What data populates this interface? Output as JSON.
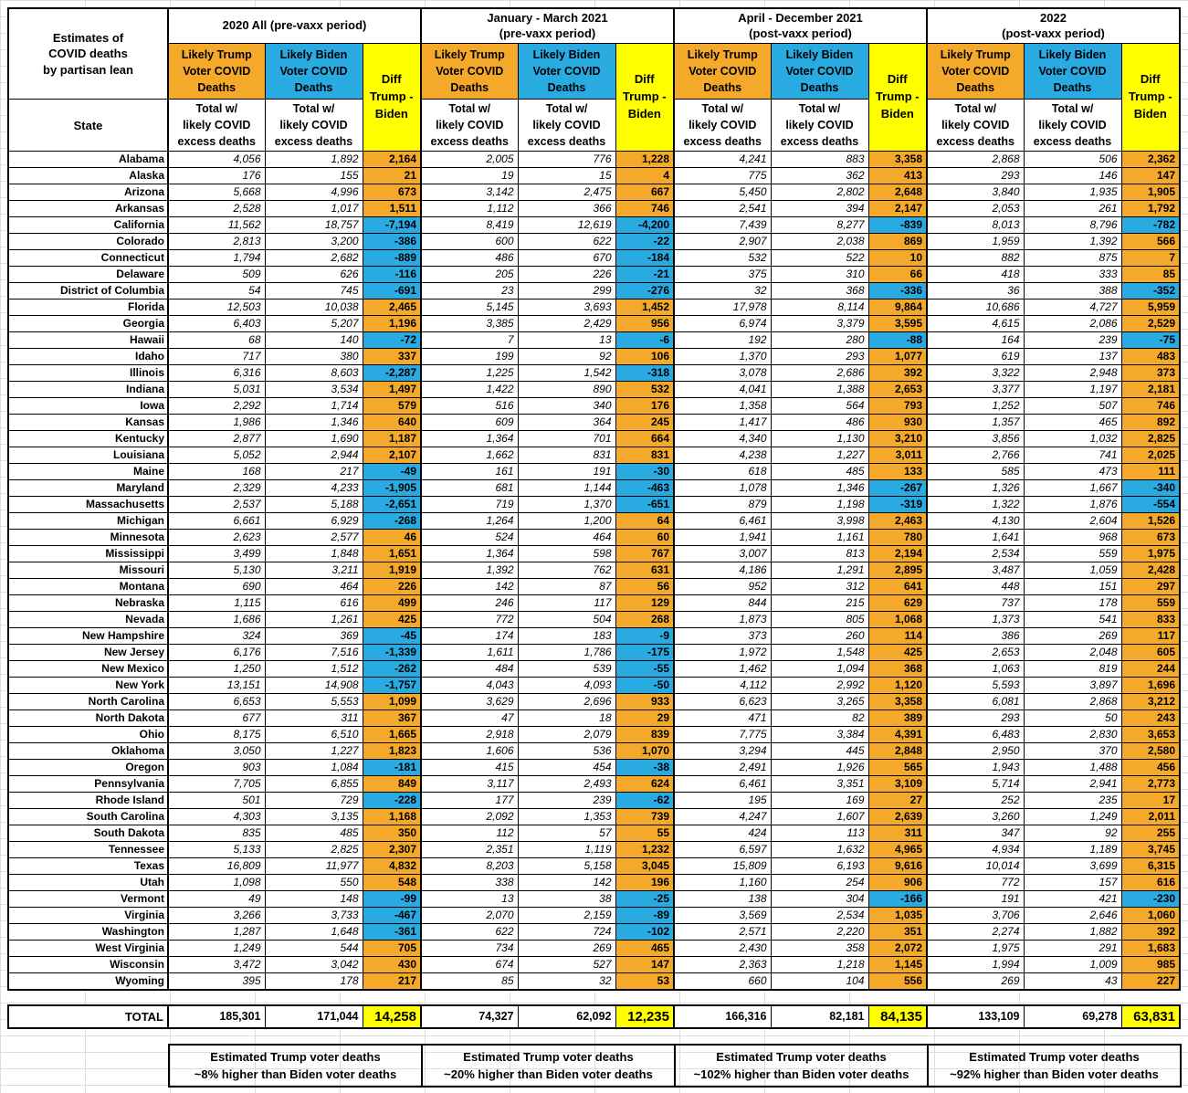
{
  "colors": {
    "trump": "#F5A92B",
    "biden": "#29ABE2",
    "diff_positive": "#F5A92B",
    "diff_negative": "#29ABE2",
    "diff_header": "#FFFF00",
    "total_diff": "#FFFF00"
  },
  "chart_data": {
    "type": "table",
    "title": "Estimates of\nCOVID deaths\nby partisan lean",
    "period_groups": [
      "2020 All (pre-vaxx period)",
      "January - March 2021\n(pre-vaxx period)",
      "April - December 2021\n(post-vaxx period)",
      "2022\n(post-vaxx period)"
    ],
    "column_headers": {
      "state": "State",
      "trump": "Likely Trump\nVoter COVID\nDeaths",
      "biden": "Likely Biden\nVoter COVID\nDeaths",
      "diff": "Diff\nTrump -\nBiden",
      "sub": "Total w/\nlikely COVID\nexcess deaths"
    },
    "rows": [
      [
        "Alabama",
        "4,056",
        "1,892",
        "2,164",
        "2,005",
        "776",
        "1,228",
        "4,241",
        "883",
        "3,358",
        "2,868",
        "506",
        "2,362"
      ],
      [
        "Alaska",
        "176",
        "155",
        "21",
        "19",
        "15",
        "4",
        "775",
        "362",
        "413",
        "293",
        "146",
        "147"
      ],
      [
        "Arizona",
        "5,668",
        "4,996",
        "673",
        "3,142",
        "2,475",
        "667",
        "5,450",
        "2,802",
        "2,648",
        "3,840",
        "1,935",
        "1,905"
      ],
      [
        "Arkansas",
        "2,528",
        "1,017",
        "1,511",
        "1,112",
        "366",
        "746",
        "2,541",
        "394",
        "2,147",
        "2,053",
        "261",
        "1,792"
      ],
      [
        "California",
        "11,562",
        "18,757",
        "-7,194",
        "8,419",
        "12,619",
        "-4,200",
        "7,439",
        "8,277",
        "-839",
        "8,013",
        "8,796",
        "-782"
      ],
      [
        "Colorado",
        "2,813",
        "3,200",
        "-386",
        "600",
        "622",
        "-22",
        "2,907",
        "2,038",
        "869",
        "1,959",
        "1,392",
        "566"
      ],
      [
        "Connecticut",
        "1,794",
        "2,682",
        "-889",
        "486",
        "670",
        "-184",
        "532",
        "522",
        "10",
        "882",
        "875",
        "7"
      ],
      [
        "Delaware",
        "509",
        "626",
        "-116",
        "205",
        "226",
        "-21",
        "375",
        "310",
        "66",
        "418",
        "333",
        "85"
      ],
      [
        "District of Columbia",
        "54",
        "745",
        "-691",
        "23",
        "299",
        "-276",
        "32",
        "368",
        "-336",
        "36",
        "388",
        "-352"
      ],
      [
        "Florida",
        "12,503",
        "10,038",
        "2,465",
        "5,145",
        "3,693",
        "1,452",
        "17,978",
        "8,114",
        "9,864",
        "10,686",
        "4,727",
        "5,959"
      ],
      [
        "Georgia",
        "6,403",
        "5,207",
        "1,196",
        "3,385",
        "2,429",
        "956",
        "6,974",
        "3,379",
        "3,595",
        "4,615",
        "2,086",
        "2,529"
      ],
      [
        "Hawaii",
        "68",
        "140",
        "-72",
        "7",
        "13",
        "-6",
        "192",
        "280",
        "-88",
        "164",
        "239",
        "-75"
      ],
      [
        "Idaho",
        "717",
        "380",
        "337",
        "199",
        "92",
        "106",
        "1,370",
        "293",
        "1,077",
        "619",
        "137",
        "483"
      ],
      [
        "Illinois",
        "6,316",
        "8,603",
        "-2,287",
        "1,225",
        "1,542",
        "-318",
        "3,078",
        "2,686",
        "392",
        "3,322",
        "2,948",
        "373"
      ],
      [
        "Indiana",
        "5,031",
        "3,534",
        "1,497",
        "1,422",
        "890",
        "532",
        "4,041",
        "1,388",
        "2,653",
        "3,377",
        "1,197",
        "2,181"
      ],
      [
        "Iowa",
        "2,292",
        "1,714",
        "579",
        "516",
        "340",
        "176",
        "1,358",
        "564",
        "793",
        "1,252",
        "507",
        "746"
      ],
      [
        "Kansas",
        "1,986",
        "1,346",
        "640",
        "609",
        "364",
        "245",
        "1,417",
        "486",
        "930",
        "1,357",
        "465",
        "892"
      ],
      [
        "Kentucky",
        "2,877",
        "1,690",
        "1,187",
        "1,364",
        "701",
        "664",
        "4,340",
        "1,130",
        "3,210",
        "3,856",
        "1,032",
        "2,825"
      ],
      [
        "Louisiana",
        "5,052",
        "2,944",
        "2,107",
        "1,662",
        "831",
        "831",
        "4,238",
        "1,227",
        "3,011",
        "2,766",
        "741",
        "2,025"
      ],
      [
        "Maine",
        "168",
        "217",
        "-49",
        "161",
        "191",
        "-30",
        "618",
        "485",
        "133",
        "585",
        "473",
        "111"
      ],
      [
        "Maryland",
        "2,329",
        "4,233",
        "-1,905",
        "681",
        "1,144",
        "-463",
        "1,078",
        "1,346",
        "-267",
        "1,326",
        "1,667",
        "-340"
      ],
      [
        "Massachusetts",
        "2,537",
        "5,188",
        "-2,651",
        "719",
        "1,370",
        "-651",
        "879",
        "1,198",
        "-319",
        "1,322",
        "1,876",
        "-554"
      ],
      [
        "Michigan",
        "6,661",
        "6,929",
        "-268",
        "1,264",
        "1,200",
        "64",
        "6,461",
        "3,998",
        "2,463",
        "4,130",
        "2,604",
        "1,526"
      ],
      [
        "Minnesota",
        "2,623",
        "2,577",
        "46",
        "524",
        "464",
        "60",
        "1,941",
        "1,161",
        "780",
        "1,641",
        "968",
        "673"
      ],
      [
        "Mississippi",
        "3,499",
        "1,848",
        "1,651",
        "1,364",
        "598",
        "767",
        "3,007",
        "813",
        "2,194",
        "2,534",
        "559",
        "1,975"
      ],
      [
        "Missouri",
        "5,130",
        "3,211",
        "1,919",
        "1,392",
        "762",
        "631",
        "4,186",
        "1,291",
        "2,895",
        "3,487",
        "1,059",
        "2,428"
      ],
      [
        "Montana",
        "690",
        "464",
        "226",
        "142",
        "87",
        "56",
        "952",
        "312",
        "641",
        "448",
        "151",
        "297"
      ],
      [
        "Nebraska",
        "1,115",
        "616",
        "499",
        "246",
        "117",
        "129",
        "844",
        "215",
        "629",
        "737",
        "178",
        "559"
      ],
      [
        "Nevada",
        "1,686",
        "1,261",
        "425",
        "772",
        "504",
        "268",
        "1,873",
        "805",
        "1,068",
        "1,373",
        "541",
        "833"
      ],
      [
        "New Hampshire",
        "324",
        "369",
        "-45",
        "174",
        "183",
        "-9",
        "373",
        "260",
        "114",
        "386",
        "269",
        "117"
      ],
      [
        "New Jersey",
        "6,176",
        "7,516",
        "-1,339",
        "1,611",
        "1,786",
        "-175",
        "1,972",
        "1,548",
        "425",
        "2,653",
        "2,048",
        "605"
      ],
      [
        "New Mexico",
        "1,250",
        "1,512",
        "-262",
        "484",
        "539",
        "-55",
        "1,462",
        "1,094",
        "368",
        "1,063",
        "819",
        "244"
      ],
      [
        "New York",
        "13,151",
        "14,908",
        "-1,757",
        "4,043",
        "4,093",
        "-50",
        "4,112",
        "2,992",
        "1,120",
        "5,593",
        "3,897",
        "1,696"
      ],
      [
        "North Carolina",
        "6,653",
        "5,553",
        "1,099",
        "3,629",
        "2,696",
        "933",
        "6,623",
        "3,265",
        "3,358",
        "6,081",
        "2,868",
        "3,212"
      ],
      [
        "North Dakota",
        "677",
        "311",
        "367",
        "47",
        "18",
        "29",
        "471",
        "82",
        "389",
        "293",
        "50",
        "243"
      ],
      [
        "Ohio",
        "8,175",
        "6,510",
        "1,665",
        "2,918",
        "2,079",
        "839",
        "7,775",
        "3,384",
        "4,391",
        "6,483",
        "2,830",
        "3,653"
      ],
      [
        "Oklahoma",
        "3,050",
        "1,227",
        "1,823",
        "1,606",
        "536",
        "1,070",
        "3,294",
        "445",
        "2,848",
        "2,950",
        "370",
        "2,580"
      ],
      [
        "Oregon",
        "903",
        "1,084",
        "-181",
        "415",
        "454",
        "-38",
        "2,491",
        "1,926",
        "565",
        "1,943",
        "1,488",
        "456"
      ],
      [
        "Pennsylvania",
        "7,705",
        "6,855",
        "849",
        "3,117",
        "2,493",
        "624",
        "6,461",
        "3,351",
        "3,109",
        "5,714",
        "2,941",
        "2,773"
      ],
      [
        "Rhode Island",
        "501",
        "729",
        "-228",
        "177",
        "239",
        "-62",
        "195",
        "169",
        "27",
        "252",
        "235",
        "17"
      ],
      [
        "South Carolina",
        "4,303",
        "3,135",
        "1,168",
        "2,092",
        "1,353",
        "739",
        "4,247",
        "1,607",
        "2,639",
        "3,260",
        "1,249",
        "2,011"
      ],
      [
        "South Dakota",
        "835",
        "485",
        "350",
        "112",
        "57",
        "55",
        "424",
        "113",
        "311",
        "347",
        "92",
        "255"
      ],
      [
        "Tennessee",
        "5,133",
        "2,825",
        "2,307",
        "2,351",
        "1,119",
        "1,232",
        "6,597",
        "1,632",
        "4,965",
        "4,934",
        "1,189",
        "3,745"
      ],
      [
        "Texas",
        "16,809",
        "11,977",
        "4,832",
        "8,203",
        "5,158",
        "3,045",
        "15,809",
        "6,193",
        "9,616",
        "10,014",
        "3,699",
        "6,315"
      ],
      [
        "Utah",
        "1,098",
        "550",
        "548",
        "338",
        "142",
        "196",
        "1,160",
        "254",
        "906",
        "772",
        "157",
        "616"
      ],
      [
        "Vermont",
        "49",
        "148",
        "-99",
        "13",
        "38",
        "-25",
        "138",
        "304",
        "-166",
        "191",
        "421",
        "-230"
      ],
      [
        "Virginia",
        "3,266",
        "3,733",
        "-467",
        "2,070",
        "2,159",
        "-89",
        "3,569",
        "2,534",
        "1,035",
        "3,706",
        "2,646",
        "1,060"
      ],
      [
        "Washington",
        "1,287",
        "1,648",
        "-361",
        "622",
        "724",
        "-102",
        "2,571",
        "2,220",
        "351",
        "2,274",
        "1,882",
        "392"
      ],
      [
        "West Virginia",
        "1,249",
        "544",
        "705",
        "734",
        "269",
        "465",
        "2,430",
        "358",
        "2,072",
        "1,975",
        "291",
        "1,683"
      ],
      [
        "Wisconsin",
        "3,472",
        "3,042",
        "430",
        "674",
        "527",
        "147",
        "2,363",
        "1,218",
        "1,145",
        "1,994",
        "1,009",
        "985"
      ],
      [
        "Wyoming",
        "395",
        "178",
        "217",
        "85",
        "32",
        "53",
        "660",
        "104",
        "556",
        "269",
        "43",
        "227"
      ]
    ],
    "total_label": "TOTAL",
    "totals": [
      "185,301",
      "171,044",
      "14,258",
      "74,327",
      "62,092",
      "12,235",
      "166,316",
      "82,181",
      "84,135",
      "133,109",
      "69,278",
      "63,831"
    ],
    "footnotes": [
      "Estimated Trump voter deaths\n~8% higher than Biden voter deaths",
      "Estimated Trump voter deaths\n~20% higher than Biden voter deaths",
      "Estimated Trump voter deaths\n~102% higher than Biden voter deaths",
      "Estimated Trump voter deaths\n~92% higher than Biden voter deaths"
    ]
  }
}
